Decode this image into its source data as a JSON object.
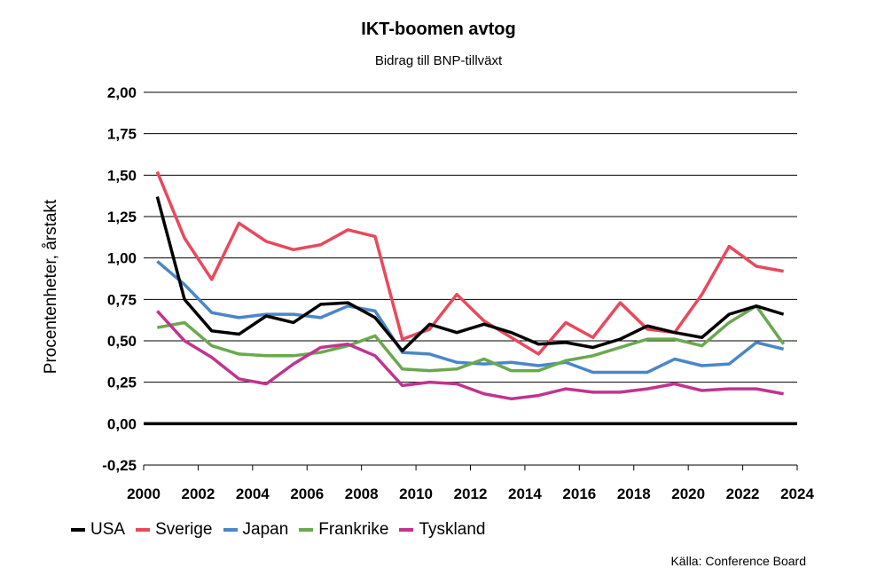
{
  "chart_data": {
    "type": "line",
    "title": "IKT-boomen avtog",
    "subtitle": "Bidrag till BNP-tillväxt",
    "ylabel": "Procentenheter, årstakt",
    "xlabel": "",
    "source": "Källa: Conference Board",
    "xlim": [
      2000,
      2024
    ],
    "ylim": [
      -0.25,
      2.0
    ],
    "x_ticks": [
      "2000",
      "2002",
      "2004",
      "2006",
      "2008",
      "2010",
      "2012",
      "2014",
      "2016",
      "2018",
      "2020",
      "2022",
      "2024"
    ],
    "y_ticks": [
      "-0,25",
      "0,00",
      "0,25",
      "0,50",
      "0,75",
      "1,00",
      "1,25",
      "1,50",
      "1,75",
      "2,00"
    ],
    "y_tick_values": [
      -0.25,
      0,
      0.25,
      0.5,
      0.75,
      1.0,
      1.25,
      1.5,
      1.75,
      2.0
    ],
    "x_tick_values": [
      2000,
      2002,
      2004,
      2006,
      2008,
      2010,
      2012,
      2014,
      2016,
      2018,
      2020,
      2022,
      2024
    ],
    "grid": true,
    "legend_position": "bottom",
    "x": [
      2000.5,
      2001.5,
      2002.5,
      2003.5,
      2004.5,
      2005.5,
      2006.5,
      2007.5,
      2008.5,
      2009.5,
      2010.5,
      2011.5,
      2012.5,
      2013.5,
      2014.5,
      2015.5,
      2016.5,
      2017.5,
      2018.5,
      2019.5,
      2020.5,
      2021.5,
      2022.5,
      2023.5
    ],
    "series": [
      {
        "name": "USA",
        "color": "#000000",
        "values": [
          1.37,
          0.75,
          0.56,
          0.54,
          0.65,
          0.61,
          0.72,
          0.73,
          0.64,
          0.44,
          0.6,
          0.55,
          0.6,
          0.55,
          0.48,
          0.49,
          0.46,
          0.51,
          0.59,
          0.55,
          0.52,
          0.66,
          0.71,
          0.66
        ]
      },
      {
        "name": "Sverige",
        "color": "#e8495c",
        "values": [
          1.52,
          1.12,
          0.87,
          1.21,
          1.1,
          1.05,
          1.08,
          1.17,
          1.13,
          0.51,
          0.57,
          0.78,
          0.62,
          0.52,
          0.42,
          0.61,
          0.52,
          0.73,
          0.57,
          0.55,
          0.78,
          1.07,
          0.95,
          0.92
        ]
      },
      {
        "name": "Japan",
        "color": "#4a86c8",
        "values": [
          0.98,
          0.84,
          0.67,
          0.64,
          0.66,
          0.66,
          0.64,
          0.71,
          0.68,
          0.43,
          0.42,
          0.37,
          0.36,
          0.37,
          0.35,
          0.37,
          0.31,
          0.31,
          0.31,
          0.39,
          0.35,
          0.36,
          0.49,
          0.45
        ]
      },
      {
        "name": "Frankrike",
        "color": "#6aa84f",
        "values": [
          0.58,
          0.61,
          0.47,
          0.42,
          0.41,
          0.41,
          0.43,
          0.47,
          0.53,
          0.33,
          0.32,
          0.33,
          0.39,
          0.32,
          0.32,
          0.38,
          0.41,
          0.46,
          0.51,
          0.51,
          0.47,
          0.61,
          0.71,
          0.48
        ]
      },
      {
        "name": "Tyskland",
        "color": "#c0348f",
        "values": [
          0.68,
          0.5,
          0.4,
          0.27,
          0.24,
          0.36,
          0.46,
          0.48,
          0.41,
          0.23,
          0.25,
          0.24,
          0.18,
          0.15,
          0.17,
          0.21,
          0.19,
          0.19,
          0.21,
          0.24,
          0.2,
          0.21,
          0.21,
          0.18
        ]
      }
    ]
  }
}
